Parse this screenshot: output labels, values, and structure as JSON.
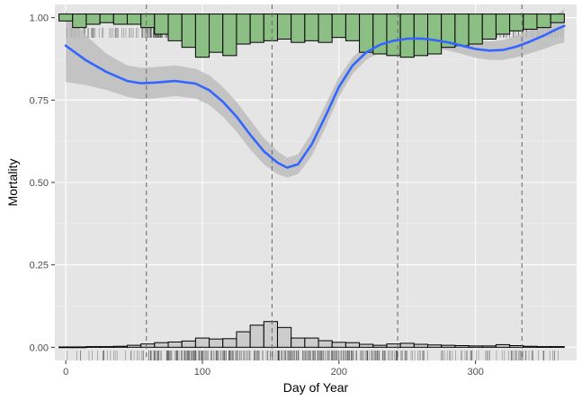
{
  "chart_data": {
    "type": "line",
    "xlabel": "Day of Year",
    "ylabel": "Mortality",
    "xlim": [
      -8,
      374
    ],
    "ylim": [
      -0.04,
      1.04
    ],
    "x_ticks": [
      0,
      100,
      200,
      300
    ],
    "y_ticks": [
      0.0,
      0.25,
      0.5,
      0.75,
      1.0
    ],
    "x_tick_labels": [
      "0",
      "100",
      "200",
      "300"
    ],
    "y_tick_labels": [
      "0.00",
      "0.25",
      "0.50",
      "0.75",
      "1.00"
    ],
    "grid": true,
    "vlines_x": [
      59,
      151,
      243,
      334
    ],
    "smooth_curve": {
      "x": [
        0,
        15,
        30,
        45,
        55,
        65,
        80,
        95,
        105,
        115,
        125,
        135,
        145,
        155,
        162,
        170,
        180,
        190,
        200,
        210,
        220,
        230,
        240,
        250,
        260,
        270,
        280,
        290,
        300,
        310,
        320,
        330,
        340,
        350,
        360,
        365
      ],
      "y": [
        0.915,
        0.87,
        0.835,
        0.808,
        0.801,
        0.803,
        0.808,
        0.8,
        0.78,
        0.745,
        0.7,
        0.645,
        0.595,
        0.56,
        0.545,
        0.555,
        0.615,
        0.7,
        0.79,
        0.855,
        0.895,
        0.918,
        0.93,
        0.936,
        0.937,
        0.932,
        0.925,
        0.915,
        0.905,
        0.9,
        0.902,
        0.912,
        0.928,
        0.946,
        0.966,
        0.975
      ],
      "ci_low": [
        0.805,
        0.795,
        0.78,
        0.76,
        0.753,
        0.755,
        0.762,
        0.755,
        0.735,
        0.7,
        0.655,
        0.6,
        0.555,
        0.525,
        0.515,
        0.525,
        0.58,
        0.665,
        0.76,
        0.83,
        0.872,
        0.895,
        0.907,
        0.912,
        0.913,
        0.908,
        0.9,
        0.89,
        0.878,
        0.872,
        0.872,
        0.88,
        0.892,
        0.905,
        0.92,
        0.925
      ],
      "ci_high": [
        1.02,
        0.945,
        0.89,
        0.855,
        0.848,
        0.85,
        0.855,
        0.845,
        0.825,
        0.79,
        0.745,
        0.69,
        0.635,
        0.595,
        0.575,
        0.585,
        0.65,
        0.735,
        0.82,
        0.88,
        0.918,
        0.94,
        0.953,
        0.96,
        0.961,
        0.956,
        0.95,
        0.94,
        0.932,
        0.928,
        0.932,
        0.945,
        0.963,
        0.987,
        1.012,
        1.025
      ]
    },
    "top_histogram": {
      "baseline": 1.0,
      "bin_width": 10,
      "bin_starts": [
        -5,
        5,
        15,
        25,
        35,
        45,
        55,
        65,
        75,
        85,
        95,
        105,
        115,
        125,
        135,
        145,
        155,
        165,
        175,
        185,
        195,
        205,
        215,
        225,
        235,
        245,
        255,
        265,
        275,
        285,
        295,
        305,
        315,
        325,
        335,
        345,
        355
      ],
      "depth": [
        0.01,
        0.03,
        0.02,
        0.015,
        0.02,
        0.02,
        0.03,
        0.05,
        0.07,
        0.09,
        0.12,
        0.105,
        0.115,
        0.08,
        0.075,
        0.07,
        0.065,
        0.075,
        0.07,
        0.075,
        0.06,
        0.07,
        0.105,
        0.11,
        0.115,
        0.12,
        0.115,
        0.11,
        0.09,
        0.085,
        0.08,
        0.065,
        0.05,
        0.04,
        0.035,
        0.03,
        0.015
      ]
    },
    "bottom_histogram": {
      "baseline": 0.0,
      "bin_width": 10,
      "bin_starts": [
        -5,
        5,
        15,
        25,
        35,
        45,
        55,
        65,
        75,
        85,
        95,
        105,
        115,
        125,
        135,
        145,
        155,
        165,
        175,
        185,
        195,
        205,
        215,
        225,
        235,
        245,
        255,
        265,
        275,
        285,
        295,
        305,
        315,
        325,
        335,
        345,
        355
      ],
      "height": [
        0.001,
        0.001,
        0.002,
        0.002,
        0.003,
        0.006,
        0.01,
        0.014,
        0.016,
        0.019,
        0.028,
        0.025,
        0.026,
        0.047,
        0.067,
        0.078,
        0.06,
        0.028,
        0.028,
        0.02,
        0.015,
        0.014,
        0.009,
        0.006,
        0.01,
        0.012,
        0.009,
        0.007,
        0.006,
        0.005,
        0.004,
        0.004,
        0.008,
        0.005,
        0.003,
        0.002,
        0.002
      ]
    },
    "colors": {
      "panel": "#e5e5e5",
      "grid_major": "#ffffff",
      "grid_minor": "#f0f0f0",
      "curve": "#3366ff",
      "ribbon": "#bdbdbd",
      "top_bars": "#8cbf84",
      "bottom_bars": "#cccccc",
      "vlines": "#6f6f6f",
      "rug": "#1a1a1a"
    }
  }
}
